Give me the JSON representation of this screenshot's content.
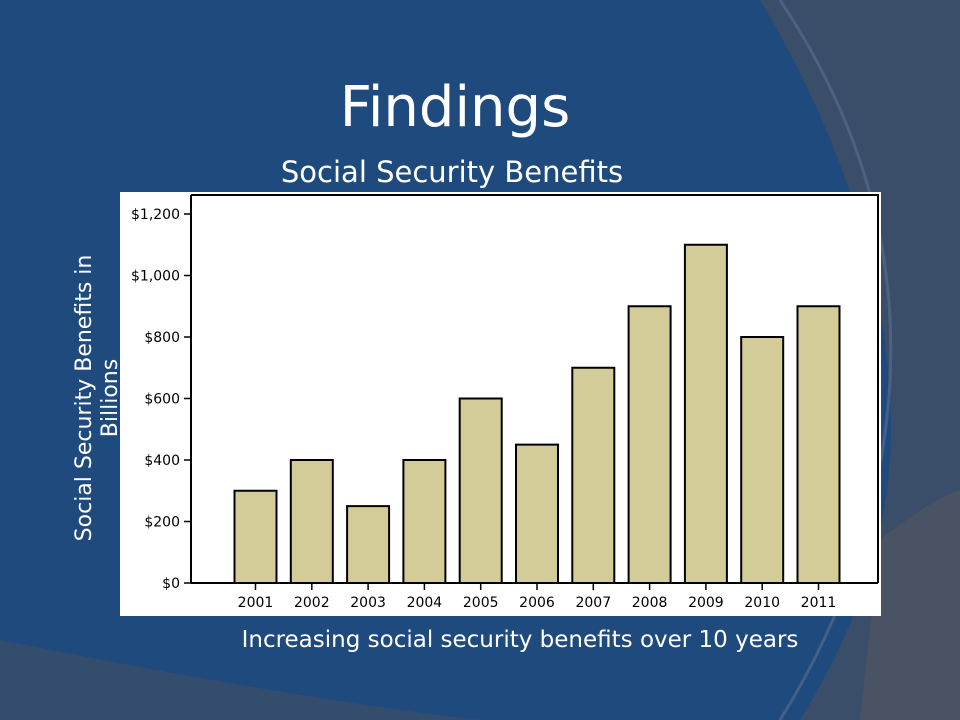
{
  "slide": {
    "title": "Findings"
  },
  "colors": {
    "background": "#1f4a7e",
    "bar_fill": "#d3cc98",
    "bar_stroke": "#000000",
    "text": "#ffffff"
  },
  "chart_data": {
    "type": "bar",
    "title": "Social Security Benefits",
    "xlabel": "Increasing social security benefits over 10 years",
    "ylabel": "Social Security Benefits in Billions",
    "categories": [
      "2001",
      "2002",
      "2003",
      "2004",
      "2005",
      "2006",
      "2007",
      "2008",
      "2009",
      "2010",
      "2011"
    ],
    "values": [
      300,
      400,
      250,
      400,
      600,
      450,
      700,
      900,
      1100,
      800,
      900
    ],
    "ylim": [
      0,
      1200
    ],
    "yticks": [
      0,
      200,
      400,
      600,
      800,
      1000,
      1200
    ],
    "ytick_labels": [
      "$0",
      "$200",
      "$400",
      "$600",
      "$800",
      "$1,000",
      "$1,200"
    ],
    "grid": false,
    "legend": "none"
  }
}
